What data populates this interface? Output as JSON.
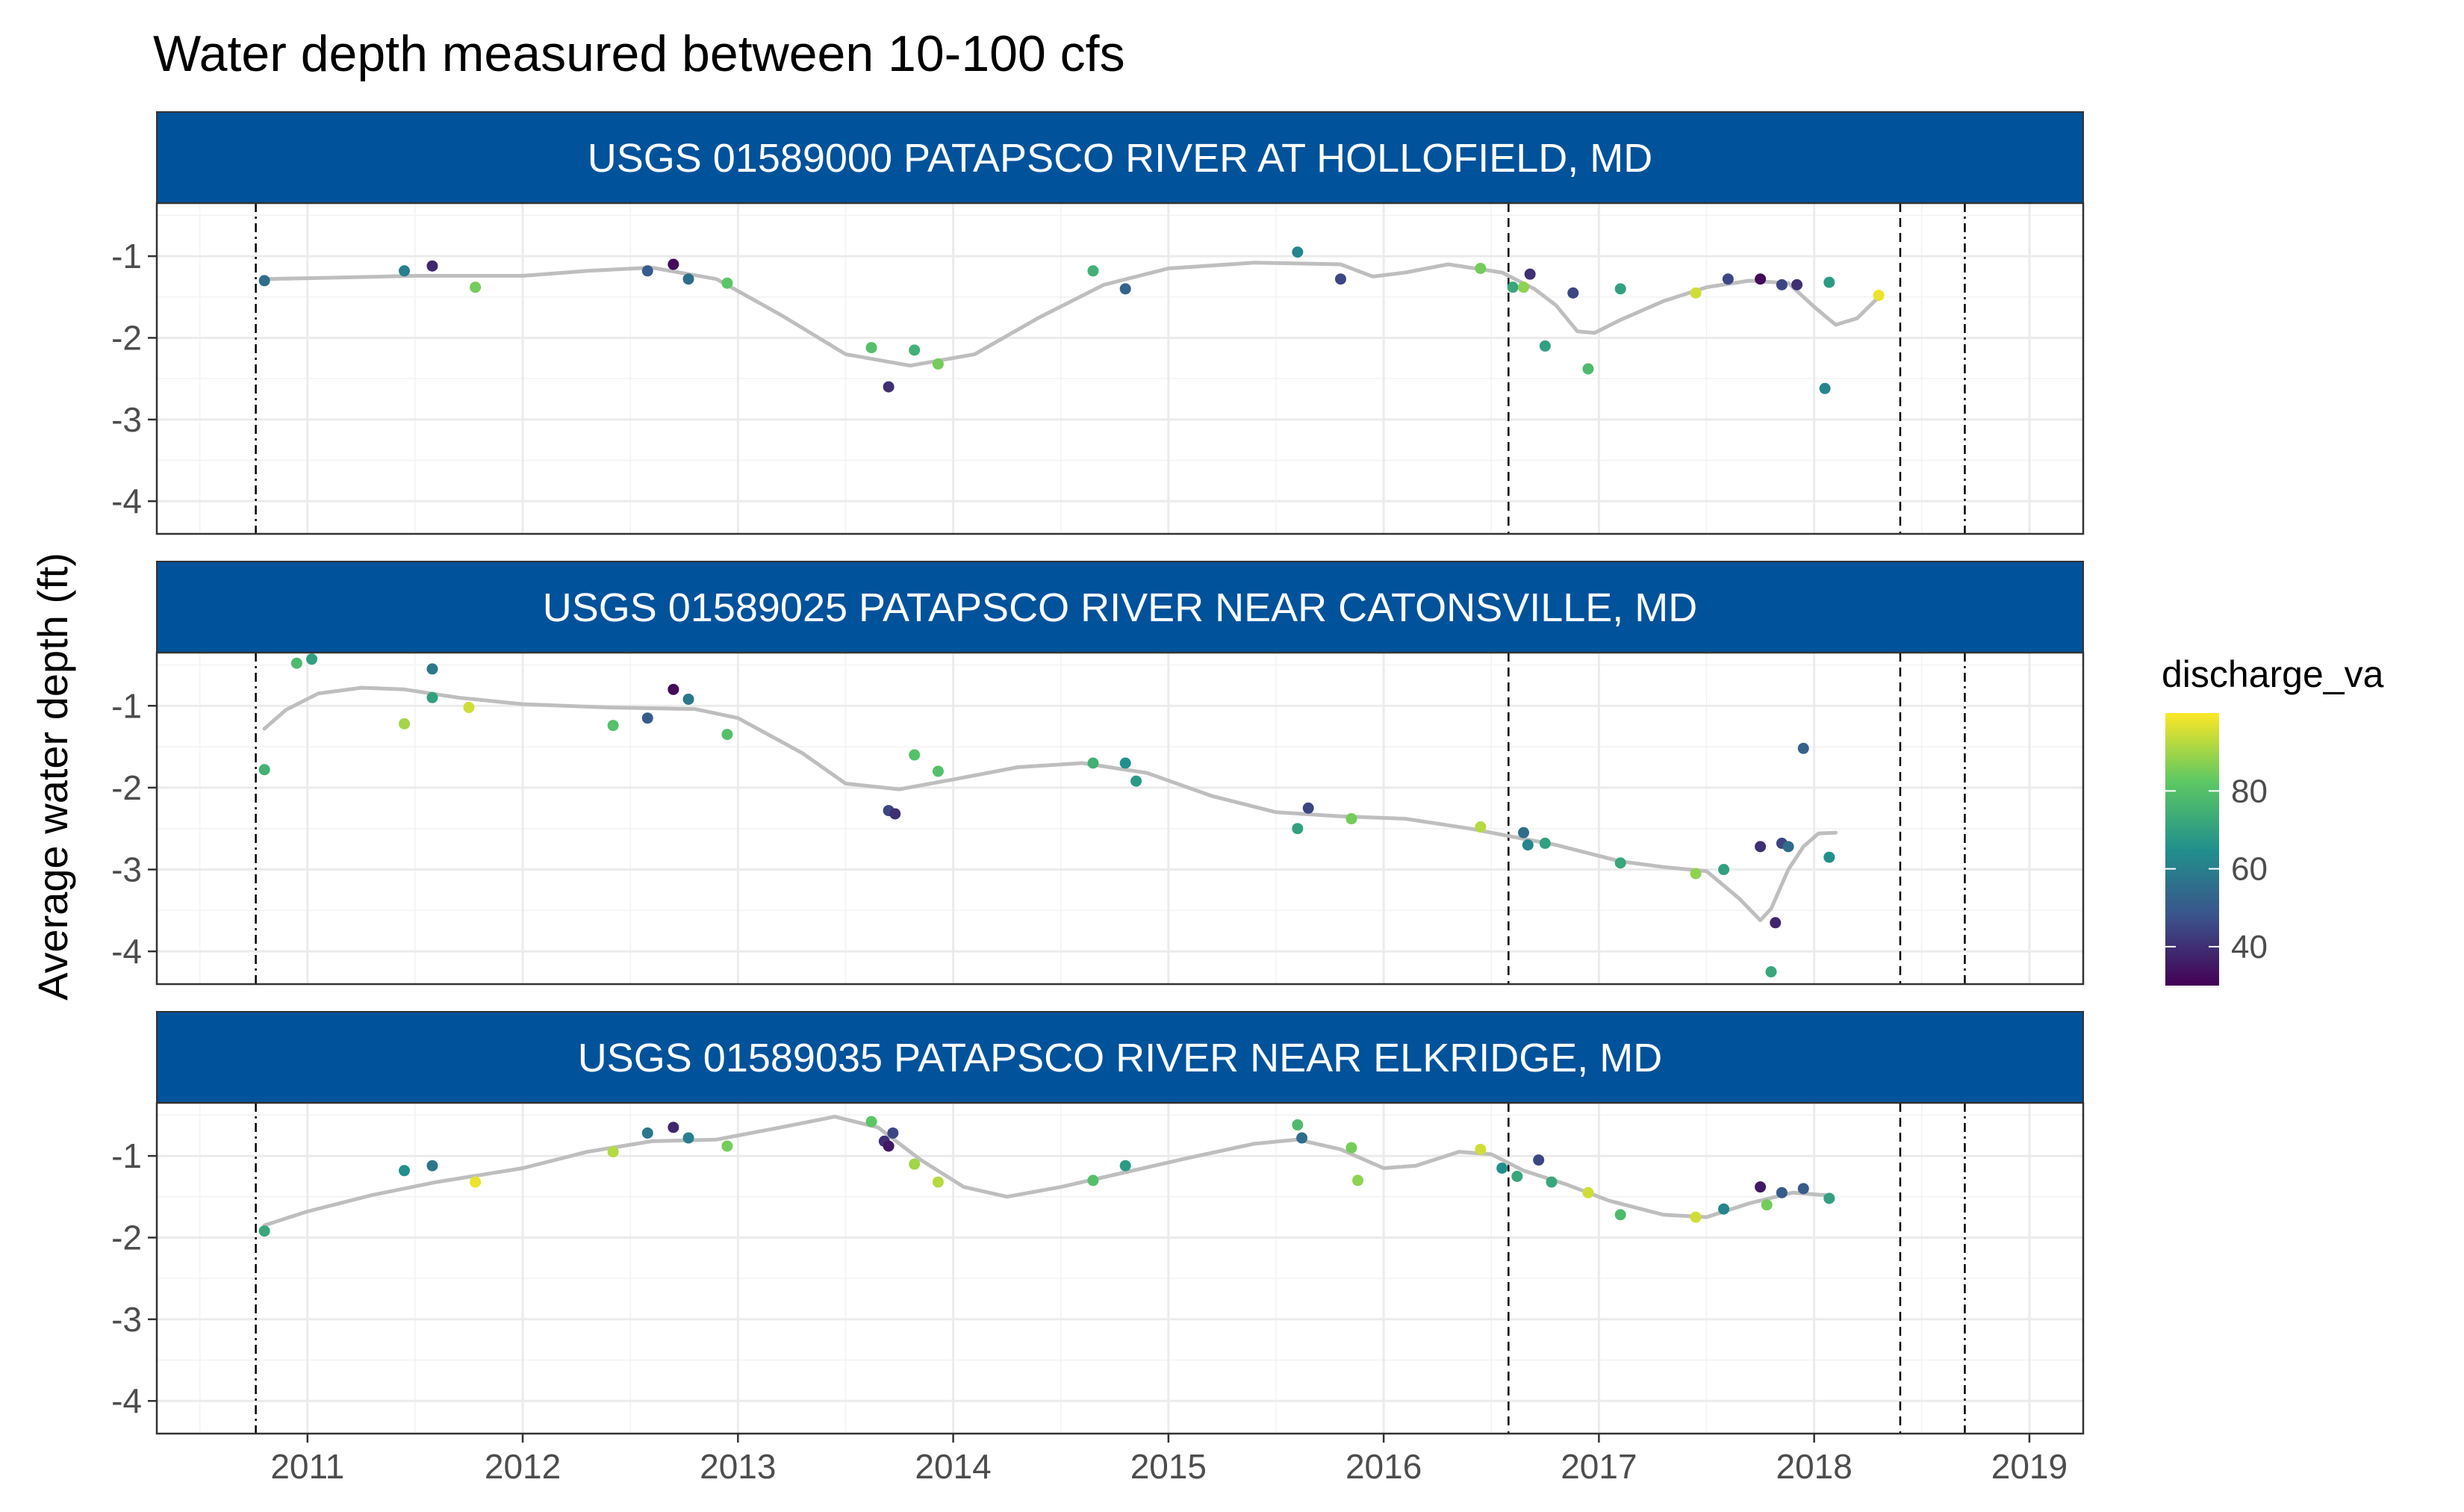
{
  "chart_data": {
    "type": "scatter",
    "title": "Water depth measured between 10-100 cfs",
    "ylabel": "Average water depth (ft)",
    "xlabel": "",
    "x_ticks": [
      "2011",
      "2012",
      "2013",
      "2014",
      "2015",
      "2016",
      "2017",
      "2018",
      "2019"
    ],
    "y_ticks": [
      "-1",
      "-2",
      "-3",
      "-4"
    ],
    "xlim": [
      2010.3,
      2019.25
    ],
    "ylim": [
      -4.4,
      -0.35
    ],
    "grid": true,
    "legend": {
      "title": "discharge_va",
      "ticks": [
        "80",
        "60",
        "40"
      ],
      "range": [
        30,
        100
      ],
      "palette": [
        "#440154",
        "#3b528b",
        "#21908c",
        "#5dc863",
        "#fde725"
      ],
      "position": "right"
    },
    "smooth_color": "#bebebe",
    "strip_color": "#00529b",
    "vlines": [
      {
        "x": 2010.76,
        "style": "dotdash"
      },
      {
        "x": 2016.58,
        "style": "dashed"
      },
      {
        "x": 2018.4,
        "style": "dashed"
      },
      {
        "x": 2018.7,
        "style": "dotdash"
      }
    ],
    "panels": [
      {
        "strip": "USGS 01589000 PATAPSCO RIVER AT HOLLOFIELD, MD",
        "points": [
          {
            "x": 2010.8,
            "y": -1.3,
            "c": 55
          },
          {
            "x": 2011.45,
            "y": -1.18,
            "c": 60
          },
          {
            "x": 2011.58,
            "y": -1.12,
            "c": 38
          },
          {
            "x": 2011.78,
            "y": -1.38,
            "c": 85
          },
          {
            "x": 2012.58,
            "y": -1.18,
            "c": 50
          },
          {
            "x": 2012.7,
            "y": -1.1,
            "c": 32
          },
          {
            "x": 2012.77,
            "y": -1.28,
            "c": 55
          },
          {
            "x": 2012.95,
            "y": -1.33,
            "c": 82
          },
          {
            "x": 2013.62,
            "y": -2.12,
            "c": 80
          },
          {
            "x": 2013.7,
            "y": -2.6,
            "c": 40
          },
          {
            "x": 2013.82,
            "y": -2.15,
            "c": 75
          },
          {
            "x": 2013.93,
            "y": -2.32,
            "c": 85
          },
          {
            "x": 2014.65,
            "y": -1.18,
            "c": 75
          },
          {
            "x": 2014.8,
            "y": -1.4,
            "c": 52
          },
          {
            "x": 2015.6,
            "y": -0.95,
            "c": 62
          },
          {
            "x": 2015.8,
            "y": -1.28,
            "c": 45
          },
          {
            "x": 2016.45,
            "y": -1.15,
            "c": 85
          },
          {
            "x": 2016.6,
            "y": -1.38,
            "c": 72
          },
          {
            "x": 2016.65,
            "y": -1.38,
            "c": 88
          },
          {
            "x": 2016.68,
            "y": -1.22,
            "c": 40
          },
          {
            "x": 2016.75,
            "y": -2.1,
            "c": 70
          },
          {
            "x": 2016.88,
            "y": -1.45,
            "c": 45
          },
          {
            "x": 2016.95,
            "y": -2.38,
            "c": 78
          },
          {
            "x": 2017.1,
            "y": -1.4,
            "c": 70
          },
          {
            "x": 2017.45,
            "y": -1.45,
            "c": 95
          },
          {
            "x": 2017.6,
            "y": -1.28,
            "c": 45
          },
          {
            "x": 2017.75,
            "y": -1.28,
            "c": 32
          },
          {
            "x": 2017.85,
            "y": -1.35,
            "c": 45
          },
          {
            "x": 2017.92,
            "y": -1.35,
            "c": 40
          },
          {
            "x": 2018.05,
            "y": -2.62,
            "c": 62
          },
          {
            "x": 2018.07,
            "y": -1.32,
            "c": 68
          },
          {
            "x": 2018.3,
            "y": -1.48,
            "c": 98
          }
        ],
        "smooth": [
          [
            2010.8,
            -1.28
          ],
          [
            2011.0,
            -1.27
          ],
          [
            2011.5,
            -1.24
          ],
          [
            2012.0,
            -1.24
          ],
          [
            2012.3,
            -1.18
          ],
          [
            2012.6,
            -1.14
          ],
          [
            2012.9,
            -1.28
          ],
          [
            2013.2,
            -1.72
          ],
          [
            2013.5,
            -2.2
          ],
          [
            2013.8,
            -2.34
          ],
          [
            2014.1,
            -2.2
          ],
          [
            2014.4,
            -1.75
          ],
          [
            2014.7,
            -1.35
          ],
          [
            2015.0,
            -1.15
          ],
          [
            2015.4,
            -1.08
          ],
          [
            2015.8,
            -1.1
          ],
          [
            2015.95,
            -1.25
          ],
          [
            2016.1,
            -1.2
          ],
          [
            2016.3,
            -1.1
          ],
          [
            2016.55,
            -1.2
          ],
          [
            2016.7,
            -1.4
          ],
          [
            2016.8,
            -1.6
          ],
          [
            2016.9,
            -1.92
          ],
          [
            2016.98,
            -1.94
          ],
          [
            2017.1,
            -1.78
          ],
          [
            2017.3,
            -1.55
          ],
          [
            2017.5,
            -1.38
          ],
          [
            2017.7,
            -1.3
          ],
          [
            2017.88,
            -1.33
          ],
          [
            2018.0,
            -1.62
          ],
          [
            2018.1,
            -1.84
          ],
          [
            2018.2,
            -1.76
          ],
          [
            2018.3,
            -1.5
          ]
        ]
      },
      {
        "strip": "USGS 01589025 PATAPSCO RIVER NEAR CATONSVILLE, MD",
        "points": [
          {
            "x": 2010.8,
            "y": -1.78,
            "c": 75
          },
          {
            "x": 2010.95,
            "y": -0.48,
            "c": 78
          },
          {
            "x": 2011.02,
            "y": -0.43,
            "c": 70
          },
          {
            "x": 2011.45,
            "y": -1.22,
            "c": 90
          },
          {
            "x": 2011.58,
            "y": -0.9,
            "c": 70
          },
          {
            "x": 2011.58,
            "y": -0.55,
            "c": 58
          },
          {
            "x": 2011.75,
            "y": -1.02,
            "c": 95
          },
          {
            "x": 2012.42,
            "y": -1.24,
            "c": 80
          },
          {
            "x": 2012.58,
            "y": -1.15,
            "c": 50
          },
          {
            "x": 2012.7,
            "y": -0.8,
            "c": 32
          },
          {
            "x": 2012.77,
            "y": -0.92,
            "c": 58
          },
          {
            "x": 2012.95,
            "y": -1.35,
            "c": 80
          },
          {
            "x": 2013.7,
            "y": -2.28,
            "c": 45
          },
          {
            "x": 2013.73,
            "y": -2.32,
            "c": 40
          },
          {
            "x": 2013.82,
            "y": -1.6,
            "c": 80
          },
          {
            "x": 2013.93,
            "y": -1.8,
            "c": 80
          },
          {
            "x": 2014.65,
            "y": -1.7,
            "c": 75
          },
          {
            "x": 2014.8,
            "y": -1.7,
            "c": 65
          },
          {
            "x": 2014.85,
            "y": -1.92,
            "c": 68
          },
          {
            "x": 2015.6,
            "y": -2.5,
            "c": 70
          },
          {
            "x": 2015.65,
            "y": -2.25,
            "c": 45
          },
          {
            "x": 2015.85,
            "y": -2.38,
            "c": 85
          },
          {
            "x": 2016.45,
            "y": -2.48,
            "c": 92
          },
          {
            "x": 2016.65,
            "y": -2.55,
            "c": 55
          },
          {
            "x": 2016.67,
            "y": -2.7,
            "c": 62
          },
          {
            "x": 2016.75,
            "y": -2.68,
            "c": 70
          },
          {
            "x": 2017.1,
            "y": -2.92,
            "c": 72
          },
          {
            "x": 2017.45,
            "y": -3.05,
            "c": 88
          },
          {
            "x": 2017.58,
            "y": -3.0,
            "c": 70
          },
          {
            "x": 2017.75,
            "y": -2.72,
            "c": 40
          },
          {
            "x": 2017.8,
            "y": -4.25,
            "c": 72
          },
          {
            "x": 2017.82,
            "y": -3.65,
            "c": 38
          },
          {
            "x": 2017.85,
            "y": -2.68,
            "c": 45
          },
          {
            "x": 2017.88,
            "y": -2.72,
            "c": 55
          },
          {
            "x": 2017.95,
            "y": -1.52,
            "c": 52
          },
          {
            "x": 2018.07,
            "y": -2.85,
            "c": 65
          }
        ],
        "smooth": [
          [
            2010.8,
            -1.28
          ],
          [
            2010.9,
            -1.05
          ],
          [
            2011.05,
            -0.85
          ],
          [
            2011.25,
            -0.78
          ],
          [
            2011.45,
            -0.8
          ],
          [
            2011.7,
            -0.9
          ],
          [
            2012.0,
            -0.98
          ],
          [
            2012.4,
            -1.02
          ],
          [
            2012.8,
            -1.04
          ],
          [
            2013.0,
            -1.15
          ],
          [
            2013.3,
            -1.58
          ],
          [
            2013.5,
            -1.95
          ],
          [
            2013.75,
            -2.02
          ],
          [
            2014.0,
            -1.9
          ],
          [
            2014.3,
            -1.75
          ],
          [
            2014.6,
            -1.7
          ],
          [
            2014.9,
            -1.82
          ],
          [
            2015.2,
            -2.1
          ],
          [
            2015.5,
            -2.3
          ],
          [
            2015.8,
            -2.35
          ],
          [
            2016.1,
            -2.38
          ],
          [
            2016.4,
            -2.5
          ],
          [
            2016.6,
            -2.6
          ],
          [
            2016.8,
            -2.7
          ],
          [
            2017.1,
            -2.9
          ],
          [
            2017.3,
            -2.97
          ],
          [
            2017.5,
            -3.02
          ],
          [
            2017.65,
            -3.35
          ],
          [
            2017.75,
            -3.62
          ],
          [
            2017.8,
            -3.48
          ],
          [
            2017.88,
            -3.0
          ],
          [
            2017.95,
            -2.72
          ],
          [
            2018.02,
            -2.56
          ],
          [
            2018.1,
            -2.55
          ]
        ]
      },
      {
        "strip": "USGS 01589035 PATAPSCO RIVER NEAR ELKRIDGE, MD",
        "points": [
          {
            "x": 2010.8,
            "y": -1.92,
            "c": 72
          },
          {
            "x": 2011.45,
            "y": -1.18,
            "c": 65
          },
          {
            "x": 2011.58,
            "y": -1.12,
            "c": 58
          },
          {
            "x": 2011.78,
            "y": -1.32,
            "c": 98
          },
          {
            "x": 2012.42,
            "y": -0.95,
            "c": 92
          },
          {
            "x": 2012.58,
            "y": -0.72,
            "c": 58
          },
          {
            "x": 2012.7,
            "y": -0.65,
            "c": 38
          },
          {
            "x": 2012.77,
            "y": -0.78,
            "c": 60
          },
          {
            "x": 2012.95,
            "y": -0.88,
            "c": 85
          },
          {
            "x": 2013.62,
            "y": -0.58,
            "c": 82
          },
          {
            "x": 2013.68,
            "y": -0.82,
            "c": 40
          },
          {
            "x": 2013.7,
            "y": -0.88,
            "c": 35
          },
          {
            "x": 2013.72,
            "y": -0.72,
            "c": 45
          },
          {
            "x": 2013.82,
            "y": -1.1,
            "c": 90
          },
          {
            "x": 2013.93,
            "y": -1.32,
            "c": 92
          },
          {
            "x": 2014.65,
            "y": -1.3,
            "c": 80
          },
          {
            "x": 2014.8,
            "y": -1.12,
            "c": 68
          },
          {
            "x": 2015.6,
            "y": -0.62,
            "c": 78
          },
          {
            "x": 2015.62,
            "y": -0.78,
            "c": 55
          },
          {
            "x": 2015.85,
            "y": -0.9,
            "c": 85
          },
          {
            "x": 2015.88,
            "y": -1.3,
            "c": 88
          },
          {
            "x": 2016.45,
            "y": -0.92,
            "c": 95
          },
          {
            "x": 2016.55,
            "y": -1.15,
            "c": 65
          },
          {
            "x": 2016.62,
            "y": -1.25,
            "c": 72
          },
          {
            "x": 2016.72,
            "y": -1.05,
            "c": 45
          },
          {
            "x": 2016.78,
            "y": -1.32,
            "c": 72
          },
          {
            "x": 2016.95,
            "y": -1.45,
            "c": 95
          },
          {
            "x": 2017.1,
            "y": -1.72,
            "c": 78
          },
          {
            "x": 2017.45,
            "y": -1.75,
            "c": 95
          },
          {
            "x": 2017.58,
            "y": -1.65,
            "c": 62
          },
          {
            "x": 2017.75,
            "y": -1.38,
            "c": 35
          },
          {
            "x": 2017.78,
            "y": -1.6,
            "c": 85
          },
          {
            "x": 2017.85,
            "y": -1.45,
            "c": 50
          },
          {
            "x": 2017.95,
            "y": -1.4,
            "c": 50
          },
          {
            "x": 2018.07,
            "y": -1.52,
            "c": 70
          }
        ],
        "smooth": [
          [
            2010.8,
            -1.85
          ],
          [
            2011.0,
            -1.68
          ],
          [
            2011.3,
            -1.48
          ],
          [
            2011.6,
            -1.32
          ],
          [
            2012.0,
            -1.15
          ],
          [
            2012.3,
            -0.95
          ],
          [
            2012.6,
            -0.82
          ],
          [
            2012.9,
            -0.8
          ],
          [
            2013.2,
            -0.65
          ],
          [
            2013.45,
            -0.52
          ],
          [
            2013.65,
            -0.65
          ],
          [
            2013.85,
            -1.05
          ],
          [
            2014.05,
            -1.38
          ],
          [
            2014.25,
            -1.5
          ],
          [
            2014.5,
            -1.38
          ],
          [
            2014.8,
            -1.2
          ],
          [
            2015.1,
            -1.02
          ],
          [
            2015.4,
            -0.85
          ],
          [
            2015.6,
            -0.8
          ],
          [
            2015.8,
            -0.92
          ],
          [
            2016.0,
            -1.15
          ],
          [
            2016.15,
            -1.12
          ],
          [
            2016.35,
            -0.95
          ],
          [
            2016.5,
            -0.98
          ],
          [
            2016.65,
            -1.18
          ],
          [
            2016.85,
            -1.35
          ],
          [
            2017.05,
            -1.55
          ],
          [
            2017.3,
            -1.72
          ],
          [
            2017.5,
            -1.75
          ],
          [
            2017.7,
            -1.58
          ],
          [
            2017.9,
            -1.45
          ],
          [
            2018.05,
            -1.48
          ]
        ]
      }
    ]
  }
}
